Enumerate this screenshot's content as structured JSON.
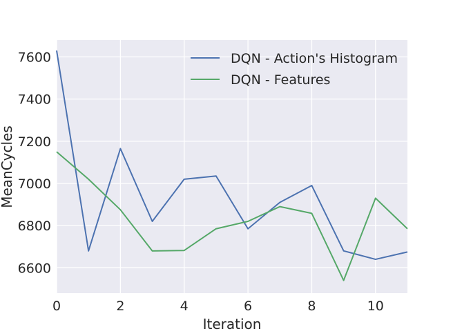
{
  "chart_data": {
    "type": "line",
    "title": "",
    "xlabel": "Iteration",
    "ylabel": "MeanCycles",
    "xlim": [
      0,
      11
    ],
    "ylim": [
      6480,
      7680
    ],
    "xticks": [
      0,
      2,
      4,
      6,
      8,
      10
    ],
    "yticks": [
      6600,
      6800,
      7000,
      7200,
      7400,
      7600
    ],
    "grid": true,
    "legend_position": "top-right",
    "x": [
      0,
      1,
      2,
      3,
      4,
      5,
      6,
      7,
      8,
      9,
      10,
      11
    ],
    "series": [
      {
        "name": "DQN - Action's Histogram",
        "color": "#4C72B0",
        "values": [
          7630,
          6680,
          7165,
          6820,
          7020,
          7035,
          6785,
          6910,
          6990,
          6680,
          6640,
          6675
        ]
      },
      {
        "name": "DQN - Features",
        "color": "#55A868",
        "values": [
          7150,
          7020,
          6875,
          6680,
          6682,
          6785,
          6820,
          6890,
          6858,
          6540,
          6930,
          6785
        ]
      }
    ]
  },
  "style": {
    "plot_background": "#EAEAF2",
    "grid_color": "#FFFFFF"
  }
}
